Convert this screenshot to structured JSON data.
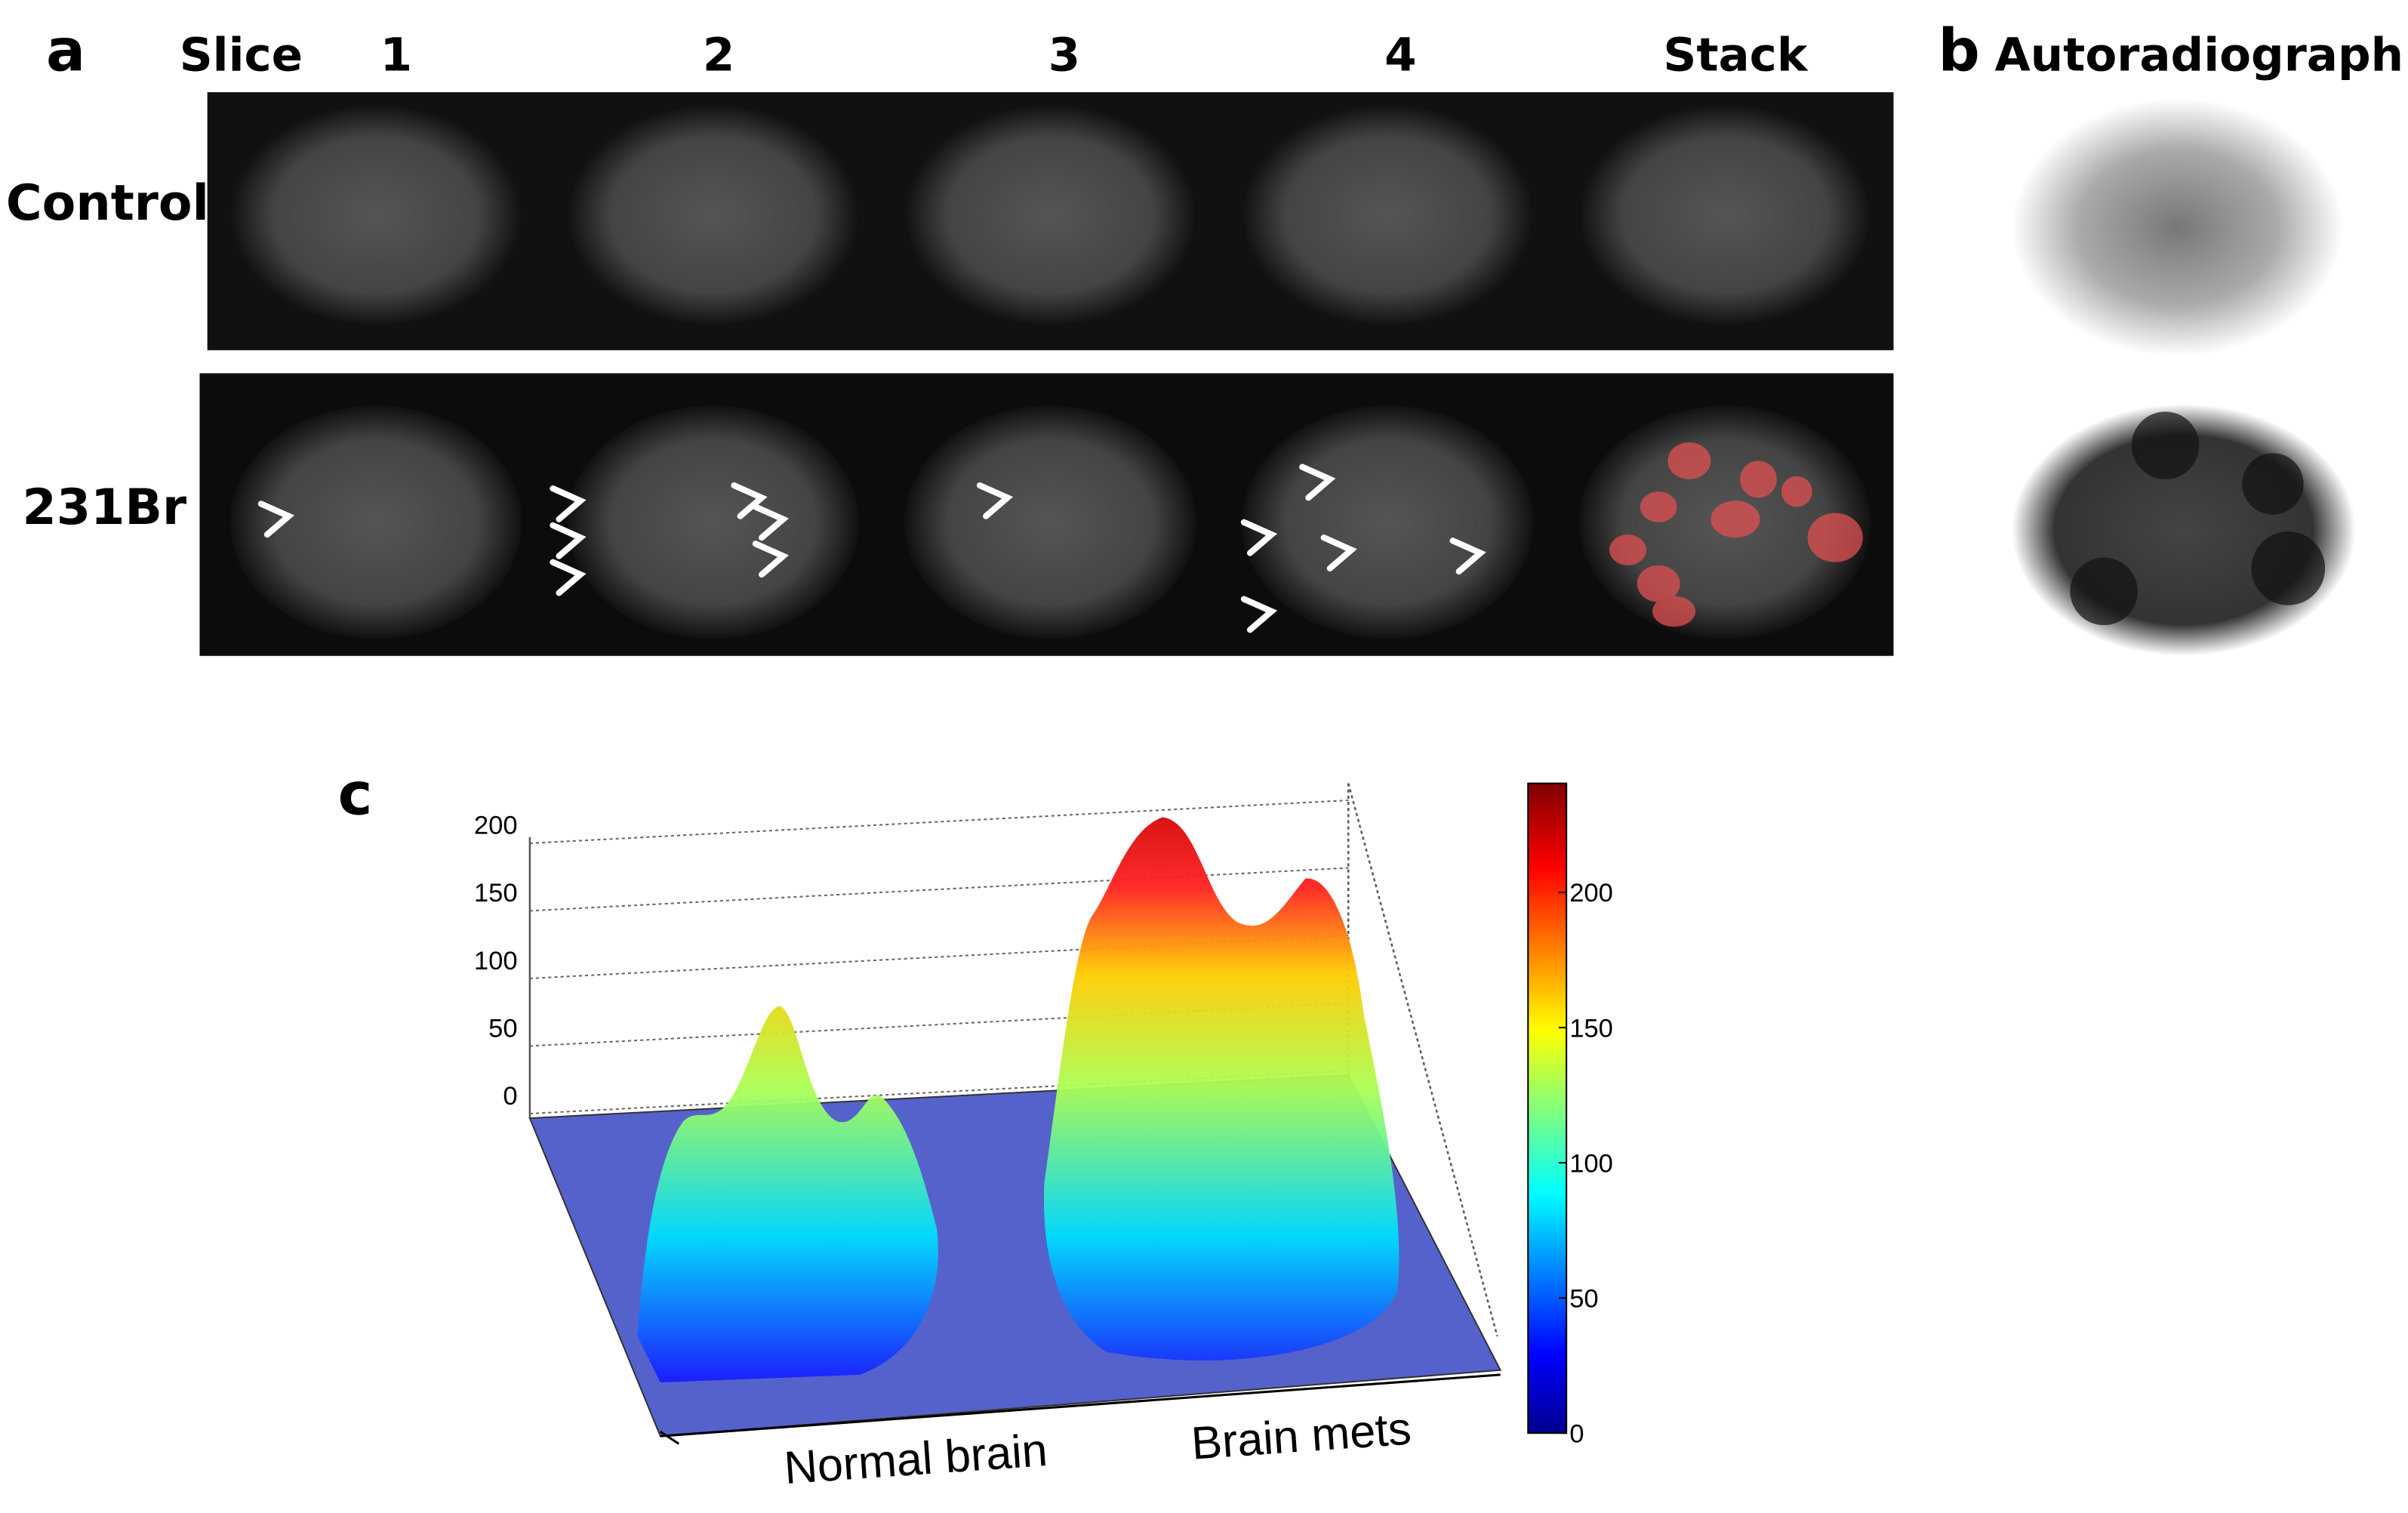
{
  "panel_a": {
    "label": "a",
    "row_header": "Slice",
    "columns": [
      "1",
      "2",
      "3",
      "4",
      "Stack"
    ],
    "rows": [
      "Control",
      "231Br"
    ]
  },
  "panel_b": {
    "label": "b",
    "title": "Autoradiograph"
  },
  "panel_c": {
    "label": "c",
    "z_ticks": [
      0,
      50,
      100,
      150,
      200
    ],
    "colorbar_ticks": [
      0,
      50,
      100,
      150,
      200
    ],
    "x_labels": [
      "Normal brain",
      "Brain mets"
    ]
  }
}
